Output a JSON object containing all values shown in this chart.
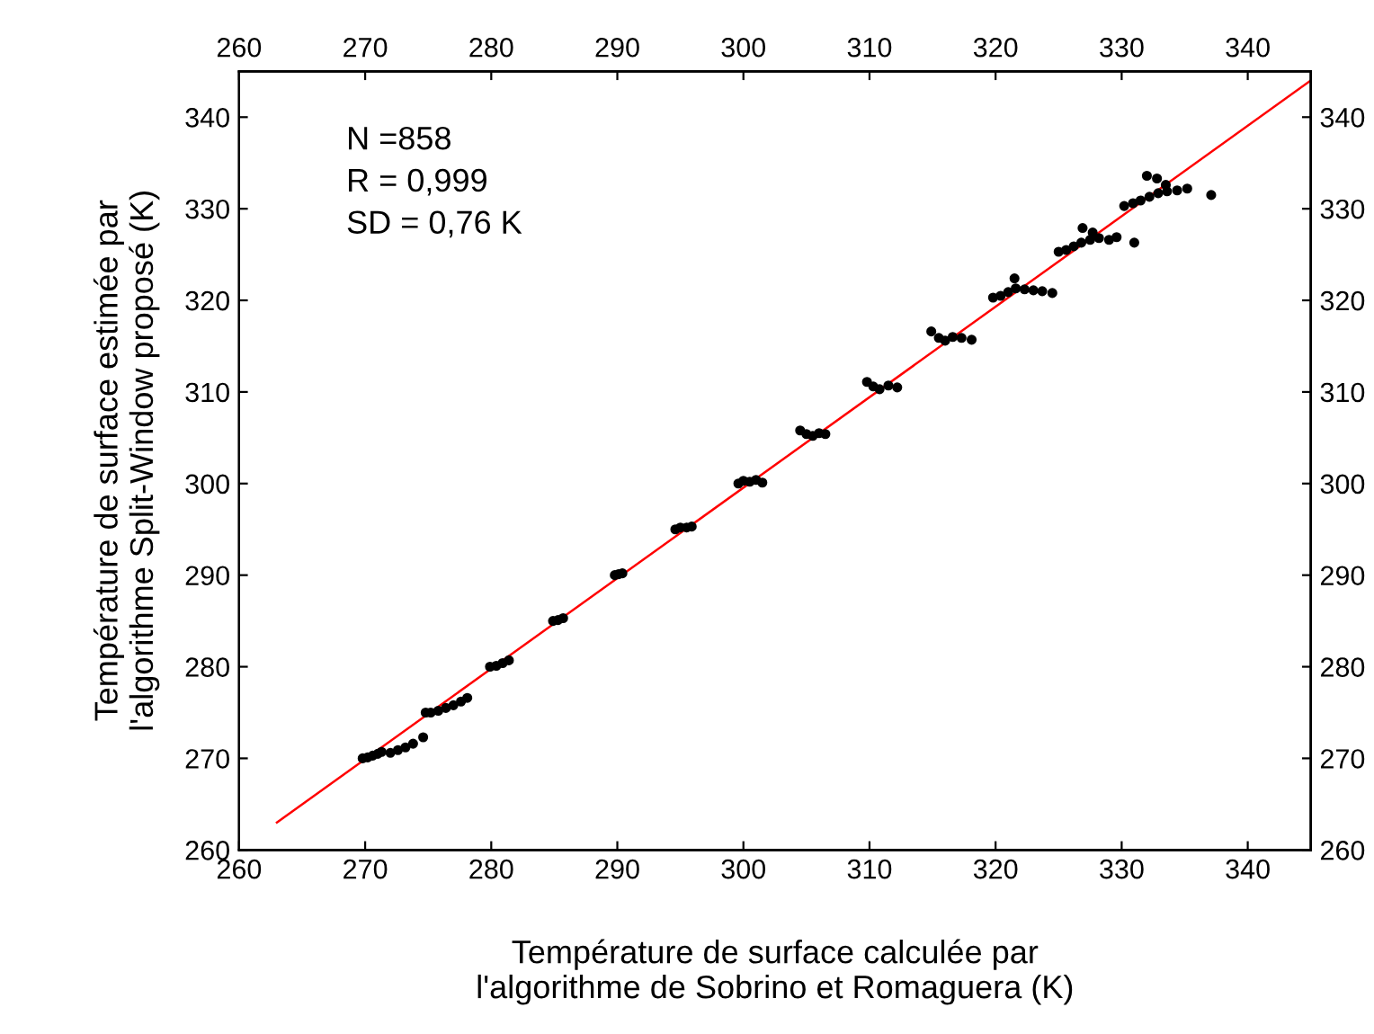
{
  "chart_data": {
    "type": "scatter",
    "xlabel": "Température de surface calculée par\nl'algorithme de Sobrino et Romaguera (K)",
    "ylabel": "Température de surface estimée par\nl'algorithme Split-Window proposé (K)",
    "annotations": [
      "N =858\nR = 0,999\nSD = 0,76 K"
    ],
    "xlim": [
      260,
      345
    ],
    "xticks": [
      260,
      270,
      280,
      290,
      300,
      310,
      320,
      330,
      340
    ],
    "x2lim": [
      260,
      345
    ],
    "x2ticks": [
      260,
      270,
      280,
      290,
      300,
      310,
      320,
      330,
      340
    ],
    "ylim": [
      260,
      345
    ],
    "yticks": [
      260,
      270,
      280,
      290,
      300,
      310,
      320,
      330,
      340
    ],
    "y2lim": [
      260,
      345
    ],
    "y2ticks": [
      260,
      270,
      280,
      290,
      300,
      310,
      320,
      330,
      340
    ],
    "grid": false,
    "marker": "circle",
    "series": [
      {
        "color": "#000000",
        "x": [
          269.8,
          270.2,
          270.6,
          271.0,
          271.3,
          272.0,
          272.6,
          273.2,
          273.8,
          274.6,
          274.8,
          275.2,
          275.8,
          276.4,
          277.0,
          277.6,
          278.1,
          279.9,
          280.4,
          280.9,
          281.4,
          284.9,
          285.3,
          285.7,
          289.8,
          290.1,
          290.4,
          294.6,
          295.0,
          295.5,
          295.9,
          299.6,
          300.0,
          300.5,
          301.0,
          301.5,
          304.5,
          305.0,
          305.5,
          306.0,
          306.5,
          309.8,
          310.3,
          310.8,
          311.5,
          312.2,
          314.9,
          315.5,
          316.0,
          316.6,
          317.3,
          318.1,
          319.8,
          320.4,
          321.0,
          321.6,
          322.3,
          323.0,
          323.7,
          324.5,
          321.5,
          325.0,
          325.6,
          326.2,
          326.8,
          327.5,
          328.2,
          329.0,
          331.0,
          326.9,
          327.7,
          329.6,
          330.2,
          330.9,
          331.5,
          332.2,
          332.9,
          333.6,
          334.4,
          335.2,
          337.1,
          332.0,
          332.8,
          333.5
        ],
        "values": [
          270.0,
          270.1,
          270.3,
          270.5,
          270.7,
          270.6,
          270.9,
          271.2,
          271.6,
          272.3,
          275.0,
          275.0,
          275.2,
          275.5,
          275.8,
          276.2,
          276.6,
          280.0,
          280.1,
          280.4,
          280.7,
          285.0,
          285.1,
          285.3,
          290.0,
          290.1,
          290.2,
          295.0,
          295.2,
          295.2,
          295.3,
          300.0,
          300.3,
          300.2,
          300.4,
          300.1,
          305.8,
          305.4,
          305.2,
          305.5,
          305.4,
          311.1,
          310.6,
          310.3,
          310.7,
          310.5,
          316.6,
          315.9,
          315.6,
          316.0,
          315.9,
          315.7,
          320.3,
          320.5,
          320.9,
          321.3,
          321.2,
          321.1,
          321.0,
          320.8,
          322.4,
          325.3,
          325.5,
          325.9,
          326.3,
          326.6,
          326.8,
          326.6,
          326.3,
          327.9,
          327.4,
          326.9,
          330.3,
          330.6,
          330.9,
          331.3,
          331.7,
          331.9,
          332.0,
          332.2,
          331.5,
          333.6,
          333.3,
          332.6
        ]
      },
      {
        "type": "line",
        "color": "#ff0000",
        "marker": "none",
        "x": [
          263,
          345
        ],
        "values": [
          263,
          344
        ]
      }
    ]
  }
}
